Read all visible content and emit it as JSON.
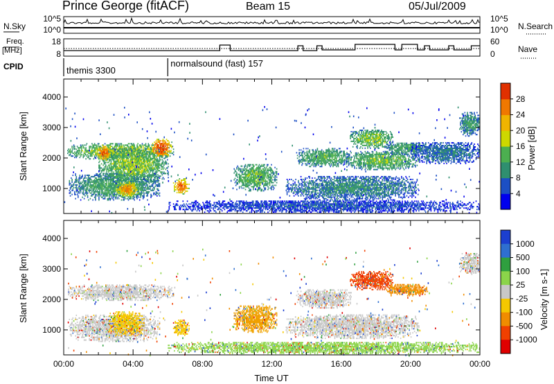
{
  "header": {
    "station": "Prince George (fitACF)",
    "beam": "Beam 15",
    "date": "05/Jul/2009"
  },
  "strip_labels": {
    "nsky": "N.Sky",
    "freq": "Freq.",
    "freq_unit": "[MHz]",
    "cpid": "CPID",
    "nsearch": "N.Search",
    "nave": "Nave"
  },
  "strip_ticks": {
    "nsky_top": "10^5",
    "nsky_bottom": "10^0",
    "nsearch_top": "10^5",
    "nsearch_bottom": "10^0",
    "freq_top": "18",
    "freq_bottom": "8",
    "nave_top": "60",
    "nave_bottom": "0"
  },
  "cpid_segments": [
    {
      "label": "themis 3300",
      "start_hour": 0,
      "end_hour": 6
    },
    {
      "label": "normalsound (fast) 157",
      "start_hour": 6,
      "end_hour": 24
    }
  ],
  "chart_data": [
    {
      "type": "heatmap",
      "quantity": "power",
      "ylabel": "Slant Range [km]",
      "xlabel": "",
      "xlim_hours": [
        0,
        24
      ],
      "ylim_km": [
        180,
        4590
      ],
      "yticks": [
        "1000",
        "2000",
        "3000",
        "4000"
      ],
      "colorbar_label": "Power [dB]",
      "colorbar_ticks": [
        "4",
        "8",
        "12",
        "16",
        "20",
        "24",
        "28"
      ],
      "colorbar_range": [
        0,
        30
      ],
      "colorbar_colors": [
        "#0000ee",
        "#1c4fc4",
        "#2f8f6f",
        "#4caf50",
        "#cdd800",
        "#f0b400",
        "#f07800",
        "#e03000"
      ],
      "echo_regions": [
        {
          "t0": 0.2,
          "t1": 6.3,
          "r0": 1950,
          "r1": 2450,
          "level": 14
        },
        {
          "t0": 0.3,
          "t1": 5.5,
          "r0": 600,
          "r1": 1500,
          "level": 10
        },
        {
          "t0": 2.0,
          "t1": 6.0,
          "r0": 1200,
          "r1": 2300,
          "level": 13
        },
        {
          "t0": 6.3,
          "t1": 7.2,
          "r0": 800,
          "r1": 1300,
          "level": 22
        },
        {
          "t0": 9.8,
          "t1": 12.3,
          "r0": 900,
          "r1": 1800,
          "level": 12
        },
        {
          "t0": 13.4,
          "t1": 16.6,
          "r0": 1700,
          "r1": 2300,
          "level": 11
        },
        {
          "t0": 12.8,
          "t1": 20.5,
          "r0": 600,
          "r1": 1400,
          "level": 8
        },
        {
          "t0": 16.2,
          "t1": 20.5,
          "r0": 1600,
          "r1": 2200,
          "level": 12
        },
        {
          "t0": 16.5,
          "t1": 19.0,
          "r0": 2300,
          "r1": 2900,
          "level": 13
        },
        {
          "t0": 18.5,
          "t1": 21.0,
          "r0": 2100,
          "r1": 2500,
          "level": 10
        },
        {
          "t0": 22.8,
          "t1": 24.0,
          "r0": 2700,
          "r1": 3500,
          "level": 9
        },
        {
          "t0": 20.0,
          "t1": 24.0,
          "r0": 1800,
          "r1": 2500,
          "level": 7
        },
        {
          "t0": 5.0,
          "t1": 6.2,
          "r0": 2000,
          "r1": 2600,
          "level": 24
        },
        {
          "t0": 1.9,
          "t1": 2.7,
          "r0": 1900,
          "r1": 2400,
          "level": 22
        },
        {
          "t0": 3.0,
          "t1": 4.3,
          "r0": 700,
          "r1": 1200,
          "level": 20
        },
        {
          "t0": 6.0,
          "t1": 24.0,
          "r0": 200,
          "r1": 600,
          "level": 5
        }
      ]
    },
    {
      "type": "heatmap",
      "quantity": "velocity",
      "ylabel": "Slant Range [km]",
      "xlabel": "Time UT",
      "xlim_hours": [
        0,
        24
      ],
      "ylim_km": [
        180,
        4590
      ],
      "xticks": [
        "00:00",
        "04:00",
        "08:00",
        "12:00",
        "16:00",
        "20:00",
        "00:00"
      ],
      "yticks": [
        "1000",
        "2000",
        "3000",
        "4000"
      ],
      "colorbar_label": "Velocity [m s-1]",
      "colorbar_ticks": [
        "1000",
        "500",
        "100",
        "25",
        "-25",
        "-100",
        "-500",
        "-1000"
      ],
      "colorbar_colors": [
        "#1c3fd0",
        "#2f6fd0",
        "#2f9f3f",
        "#8bd44a",
        "#c8c8c8",
        "#f5c800",
        "#f08c00",
        "#f04000",
        "#e00000"
      ],
      "echo_regions": [
        {
          "t0": 0.2,
          "t1": 6.3,
          "r0": 1950,
          "r1": 2450,
          "color": "#c8c8c8"
        },
        {
          "t0": 0.3,
          "t1": 5.5,
          "r0": 600,
          "r1": 1500,
          "color": "#c8c8c8"
        },
        {
          "t0": 2.6,
          "t1": 4.6,
          "r0": 800,
          "r1": 1600,
          "color": "#f5c800"
        },
        {
          "t0": 6.3,
          "t1": 7.2,
          "r0": 800,
          "r1": 1300,
          "color": "#f5c800"
        },
        {
          "t0": 9.8,
          "t1": 12.3,
          "r0": 900,
          "r1": 1800,
          "color": "#f0a000"
        },
        {
          "t0": 13.4,
          "t1": 16.6,
          "r0": 1700,
          "r1": 2300,
          "color": "#c8c8c8"
        },
        {
          "t0": 12.8,
          "t1": 20.5,
          "r0": 700,
          "r1": 1500,
          "color": "#c8c8c8"
        },
        {
          "t0": 16.5,
          "t1": 19.0,
          "r0": 2300,
          "r1": 2900,
          "color": "#f04000"
        },
        {
          "t0": 18.5,
          "t1": 21.0,
          "r0": 2100,
          "r1": 2500,
          "color": "#f08c00"
        },
        {
          "t0": 22.8,
          "t1": 24.0,
          "r0": 2800,
          "r1": 3500,
          "color": "#c8c8c8"
        },
        {
          "t0": 6.0,
          "t1": 24.0,
          "r0": 200,
          "r1": 600,
          "color": "#8bd44a"
        }
      ]
    }
  ]
}
